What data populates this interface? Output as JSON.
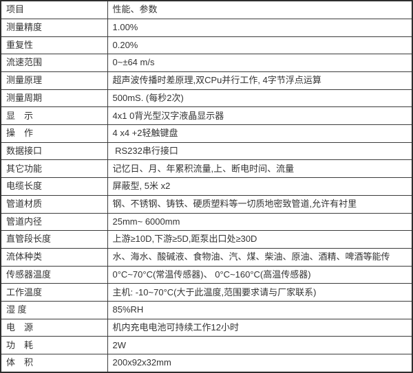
{
  "table": {
    "header": {
      "item": "项目",
      "value": "性能、参数"
    },
    "rows": [
      {
        "label": "测量精度",
        "value": "1.00%"
      },
      {
        "label": "重复性",
        "value": "0.20%"
      },
      {
        "label": "流速范围",
        "value": "0~±64 m/s"
      },
      {
        "label": "测量原理",
        "value": "超声波传播时差原理,双CPu并行工作, 4字节浮点运算"
      },
      {
        "label": "测量周期",
        "value": "500mS. (每秒2次)"
      },
      {
        "label": "显　示",
        "value": "4x1 0背光型汉字液晶显示器"
      },
      {
        "label": "操　作",
        "value": "4 x4 +2轻触键盘"
      },
      {
        "label": "数据接口",
        "value": " RS232串行接口"
      },
      {
        "label": "其它功能",
        "value": "记忆日、月、年累积流量,上、断电时间、流量"
      },
      {
        "label": "电缆长度",
        "value": "屏蔽型, 5米 x2"
      },
      {
        "label": "管道材质",
        "value": "钢、不锈钢、铸铁、硬质塑料等一切质地密致管道,允许有衬里"
      },
      {
        "label": "管道内径",
        "value": "25mm~ 6000mm"
      },
      {
        "label": "直管段长度",
        "value": "上游≥10D,下游≥5D,距泵出口处≥30D"
      },
      {
        "label": "流体种类",
        "value": "水、海水、酸碱液、食物油、汽、煤、柴油、原油、酒精、啤酒等能传"
      },
      {
        "label": "传感器温度",
        "value": "0°C~70°C(常温传感器)、 0°C~160°C(高温传感器)"
      },
      {
        "label": "工作温度",
        "value": "主机: -10~70°C(大于此温度,范围要求请与厂家联系)"
      },
      {
        "label": "湿 度",
        "value": "85%RH"
      },
      {
        "label": "电　源",
        "value": "机内充电电池可持续工作12小时"
      },
      {
        "label": "功　耗",
        "value": "2W"
      },
      {
        "label": "体　积",
        "value": "200x92x32mm"
      }
    ],
    "colors": {
      "border": "#333333",
      "text": "#333333",
      "background": "#ffffff"
    }
  }
}
